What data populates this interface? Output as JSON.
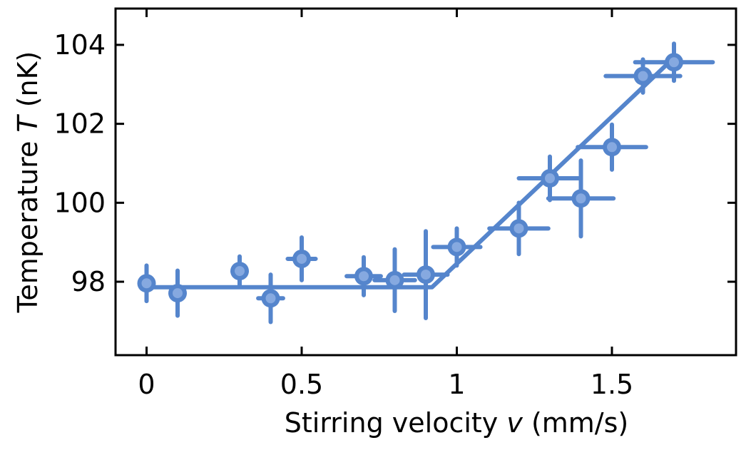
{
  "chart_data": {
    "type": "scatter",
    "title": "",
    "xlabel_prefix": "Stirring velocity ",
    "xlabel_var": "v",
    "xlabel_suffix": " (mm/s)",
    "ylabel_prefix": "Temperature ",
    "ylabel_var": "T",
    "ylabel_suffix": " (nK)",
    "xlim": [
      -0.1,
      1.9
    ],
    "ylim": [
      96.14,
      104.92
    ],
    "xticks": [
      0,
      0.5,
      1,
      1.5
    ],
    "xtick_labels": [
      "0",
      "0.5",
      "1",
      "1.5"
    ],
    "yticks": [
      98,
      100,
      102,
      104
    ],
    "ytick_labels": [
      "98",
      "100",
      "102",
      "104"
    ],
    "grid": false,
    "legend": "none",
    "colors": {
      "marker": "#5585cc",
      "marker_inner": "#86a9e0",
      "fit": "#5585cc"
    },
    "points": [
      {
        "x": 0.0,
        "y": 97.96,
        "yerr": 0.45,
        "xerr": 0
      },
      {
        "x": 0.1,
        "y": 97.71,
        "yerr": 0.57,
        "xerr": 0
      },
      {
        "x": 0.3,
        "y": 98.27,
        "yerr": 0.37,
        "xerr": 0
      },
      {
        "x": 0.4,
        "y": 97.58,
        "yerr": 0.6,
        "xerr": 0.04
      },
      {
        "x": 0.5,
        "y": 98.58,
        "yerr": 0.54,
        "xerr": 0.045
      },
      {
        "x": 0.7,
        "y": 98.14,
        "yerr": 0.48,
        "xerr": 0.055
      },
      {
        "x": 0.8,
        "y": 98.04,
        "yerr": 0.78,
        "xerr": 0.065
      },
      {
        "x": 0.9,
        "y": 98.18,
        "yerr": 1.1,
        "xerr": 0.07
      },
      {
        "x": 1.0,
        "y": 98.88,
        "yerr": 0.47,
        "xerr": 0.076
      },
      {
        "x": 1.2,
        "y": 99.35,
        "yerr": 0.65,
        "xerr": 0.095
      },
      {
        "x": 1.3,
        "y": 100.62,
        "yerr": 0.55,
        "xerr": 0.1
      },
      {
        "x": 1.4,
        "y": 100.11,
        "yerr": 0.96,
        "xerr": 0.105
      },
      {
        "x": 1.5,
        "y": 101.41,
        "yerr": 0.57,
        "xerr": 0.11
      },
      {
        "x": 1.6,
        "y": 103.21,
        "yerr": 0.42,
        "xerr": 0.12
      },
      {
        "x": 1.7,
        "y": 103.56,
        "yerr": 0.47,
        "xerr": 0.125
      }
    ],
    "fit": {
      "x": [
        0,
        0.92,
        1.69
      ],
      "y": [
        97.86,
        97.86,
        103.6
      ]
    }
  }
}
